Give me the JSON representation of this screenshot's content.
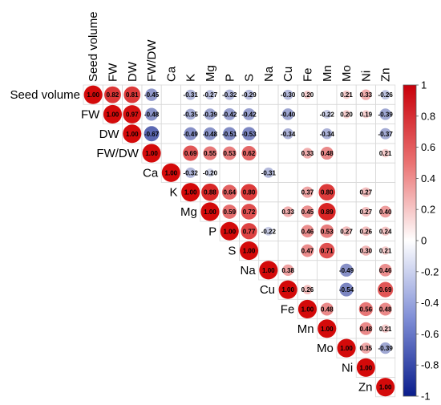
{
  "chart_data": {
    "type": "heatmap",
    "variables": [
      "Seed volume",
      "FW",
      "DW",
      "FW/DW",
      "Ca",
      "K",
      "Mg",
      "P",
      "S",
      "Na",
      "Cu",
      "Fe",
      "Mn",
      "Mo",
      "Ni",
      "Zn"
    ],
    "matrix": [
      [
        1.0,
        0.82,
        0.81,
        -0.45,
        null,
        -0.31,
        -0.27,
        -0.32,
        -0.29,
        null,
        -0.3,
        0.2,
        null,
        0.21,
        0.33,
        -0.26
      ],
      [
        null,
        1.0,
        0.97,
        -0.48,
        null,
        -0.35,
        -0.39,
        -0.42,
        -0.42,
        null,
        -0.4,
        null,
        -0.22,
        0.2,
        0.19,
        -0.39
      ],
      [
        null,
        null,
        1.0,
        -0.67,
        null,
        -0.49,
        -0.48,
        -0.51,
        -0.53,
        null,
        -0.34,
        null,
        -0.34,
        null,
        null,
        -0.37
      ],
      [
        null,
        null,
        null,
        1.0,
        null,
        0.69,
        0.55,
        0.53,
        0.62,
        null,
        null,
        0.33,
        0.48,
        null,
        null,
        0.21
      ],
      [
        null,
        null,
        null,
        null,
        1.0,
        -0.32,
        -0.2,
        null,
        null,
        -0.31,
        null,
        null,
        null,
        null,
        null,
        null
      ],
      [
        null,
        null,
        null,
        null,
        null,
        1.0,
        0.88,
        0.64,
        0.8,
        null,
        null,
        0.37,
        0.8,
        null,
        0.27,
        null
      ],
      [
        null,
        null,
        null,
        null,
        null,
        null,
        1.0,
        0.59,
        0.72,
        null,
        0.33,
        0.45,
        0.89,
        null,
        0.27,
        0.4
      ],
      [
        null,
        null,
        null,
        null,
        null,
        null,
        null,
        1.0,
        0.77,
        -0.22,
        null,
        0.46,
        0.53,
        0.27,
        0.26,
        0.24
      ],
      [
        null,
        null,
        null,
        null,
        null,
        null,
        null,
        null,
        1.0,
        null,
        null,
        0.47,
        0.71,
        null,
        0.3,
        0.21
      ],
      [
        null,
        null,
        null,
        null,
        null,
        null,
        null,
        null,
        null,
        1.0,
        0.38,
        null,
        null,
        -0.49,
        null,
        0.46
      ],
      [
        null,
        null,
        null,
        null,
        null,
        null,
        null,
        null,
        null,
        null,
        1.0,
        0.26,
        null,
        -0.54,
        null,
        0.69
      ],
      [
        null,
        null,
        null,
        null,
        null,
        null,
        null,
        null,
        null,
        null,
        null,
        1.0,
        0.48,
        null,
        0.56,
        0.48
      ],
      [
        null,
        null,
        null,
        null,
        null,
        null,
        null,
        null,
        null,
        null,
        null,
        null,
        1.0,
        null,
        0.48,
        0.21
      ],
      [
        null,
        null,
        null,
        null,
        null,
        null,
        null,
        null,
        null,
        null,
        null,
        null,
        null,
        1.0,
        0.35,
        -0.39
      ],
      [
        null,
        null,
        null,
        null,
        null,
        null,
        null,
        null,
        null,
        null,
        null,
        null,
        null,
        null,
        1.0,
        null
      ],
      [
        null,
        null,
        null,
        null,
        null,
        null,
        null,
        null,
        null,
        null,
        null,
        null,
        null,
        null,
        null,
        1.0
      ]
    ],
    "colorbar": {
      "ticks": [
        "1",
        "0.8",
        "0.6",
        "0.4",
        "0.2",
        "0",
        "-0.2",
        "-0.4",
        "-0.6",
        "-0.8",
        "-1"
      ],
      "range": [
        -1,
        1
      ],
      "colors": {
        "negative": "#0a1d8c",
        "zero": "#ffffff",
        "positive": "#d40a0a"
      }
    },
    "title": "",
    "xlabel": "",
    "ylabel": ""
  }
}
